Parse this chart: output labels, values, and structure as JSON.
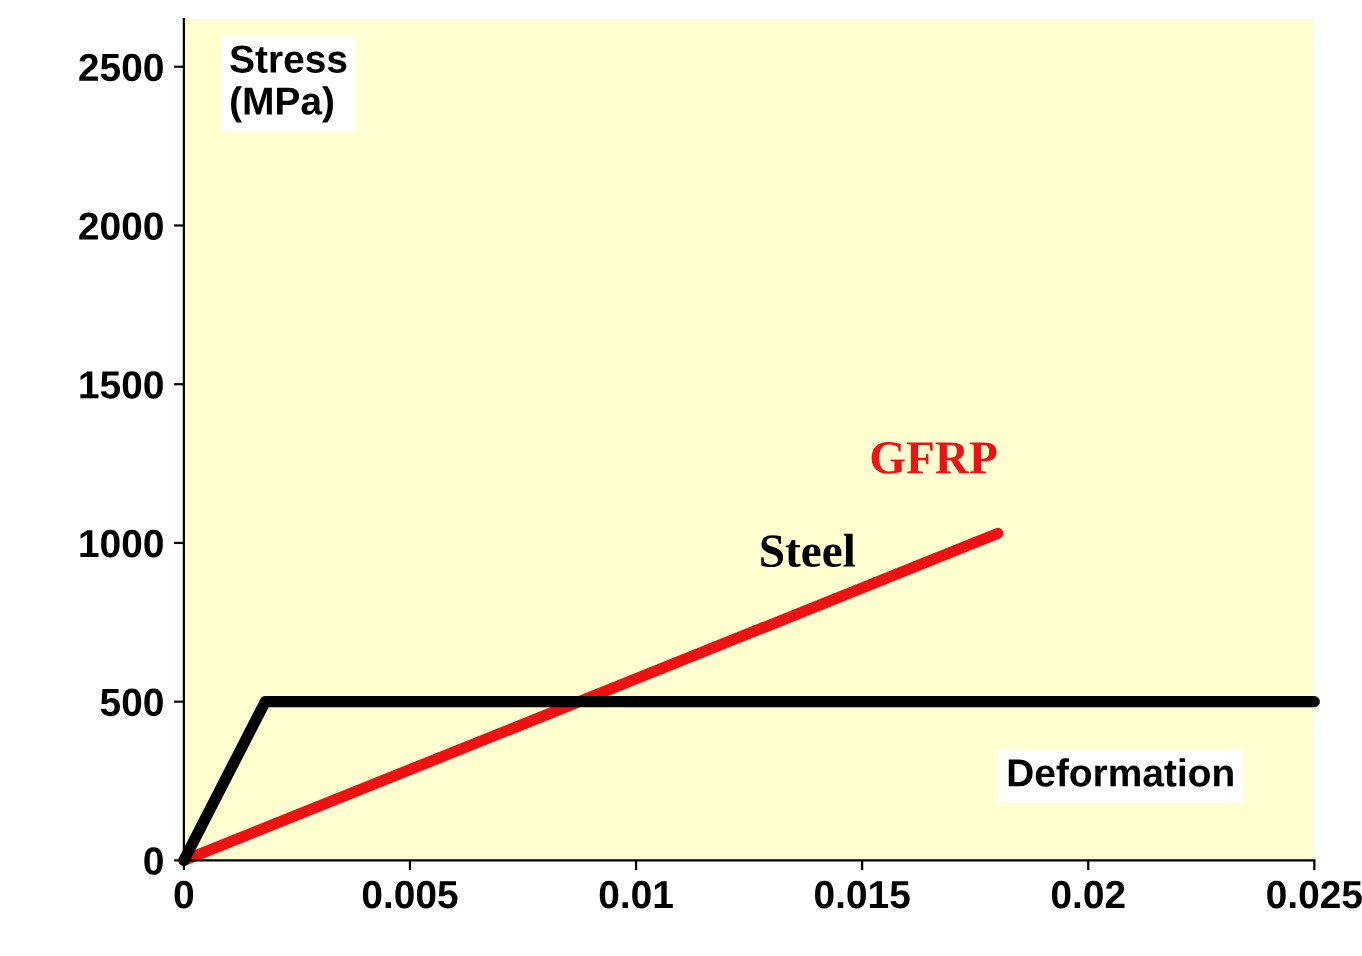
{
  "chart_data": {
    "type": "line",
    "ylabel": "Stress\n(MPa)",
    "xlabel": "Deformation",
    "series": [
      {
        "name": "GFRP",
        "color": "#ee1111",
        "x": [
          0,
          0.018
        ],
        "values": [
          0,
          1030
        ]
      },
      {
        "name": "Steel",
        "color": "#000000",
        "x": [
          0,
          0.0018,
          0.025
        ],
        "values": [
          0,
          500,
          500
        ]
      }
    ],
    "xlim": [
      0,
      0.025
    ],
    "ylim": [
      0,
      2650
    ],
    "xticks": [
      0,
      0.005,
      0.01,
      0.015,
      0.02,
      0.025
    ],
    "yticks": [
      0,
      500,
      1000,
      1500,
      2000,
      2500
    ],
    "grid": false,
    "legend": false,
    "marker": "none",
    "line_style": "solid"
  }
}
